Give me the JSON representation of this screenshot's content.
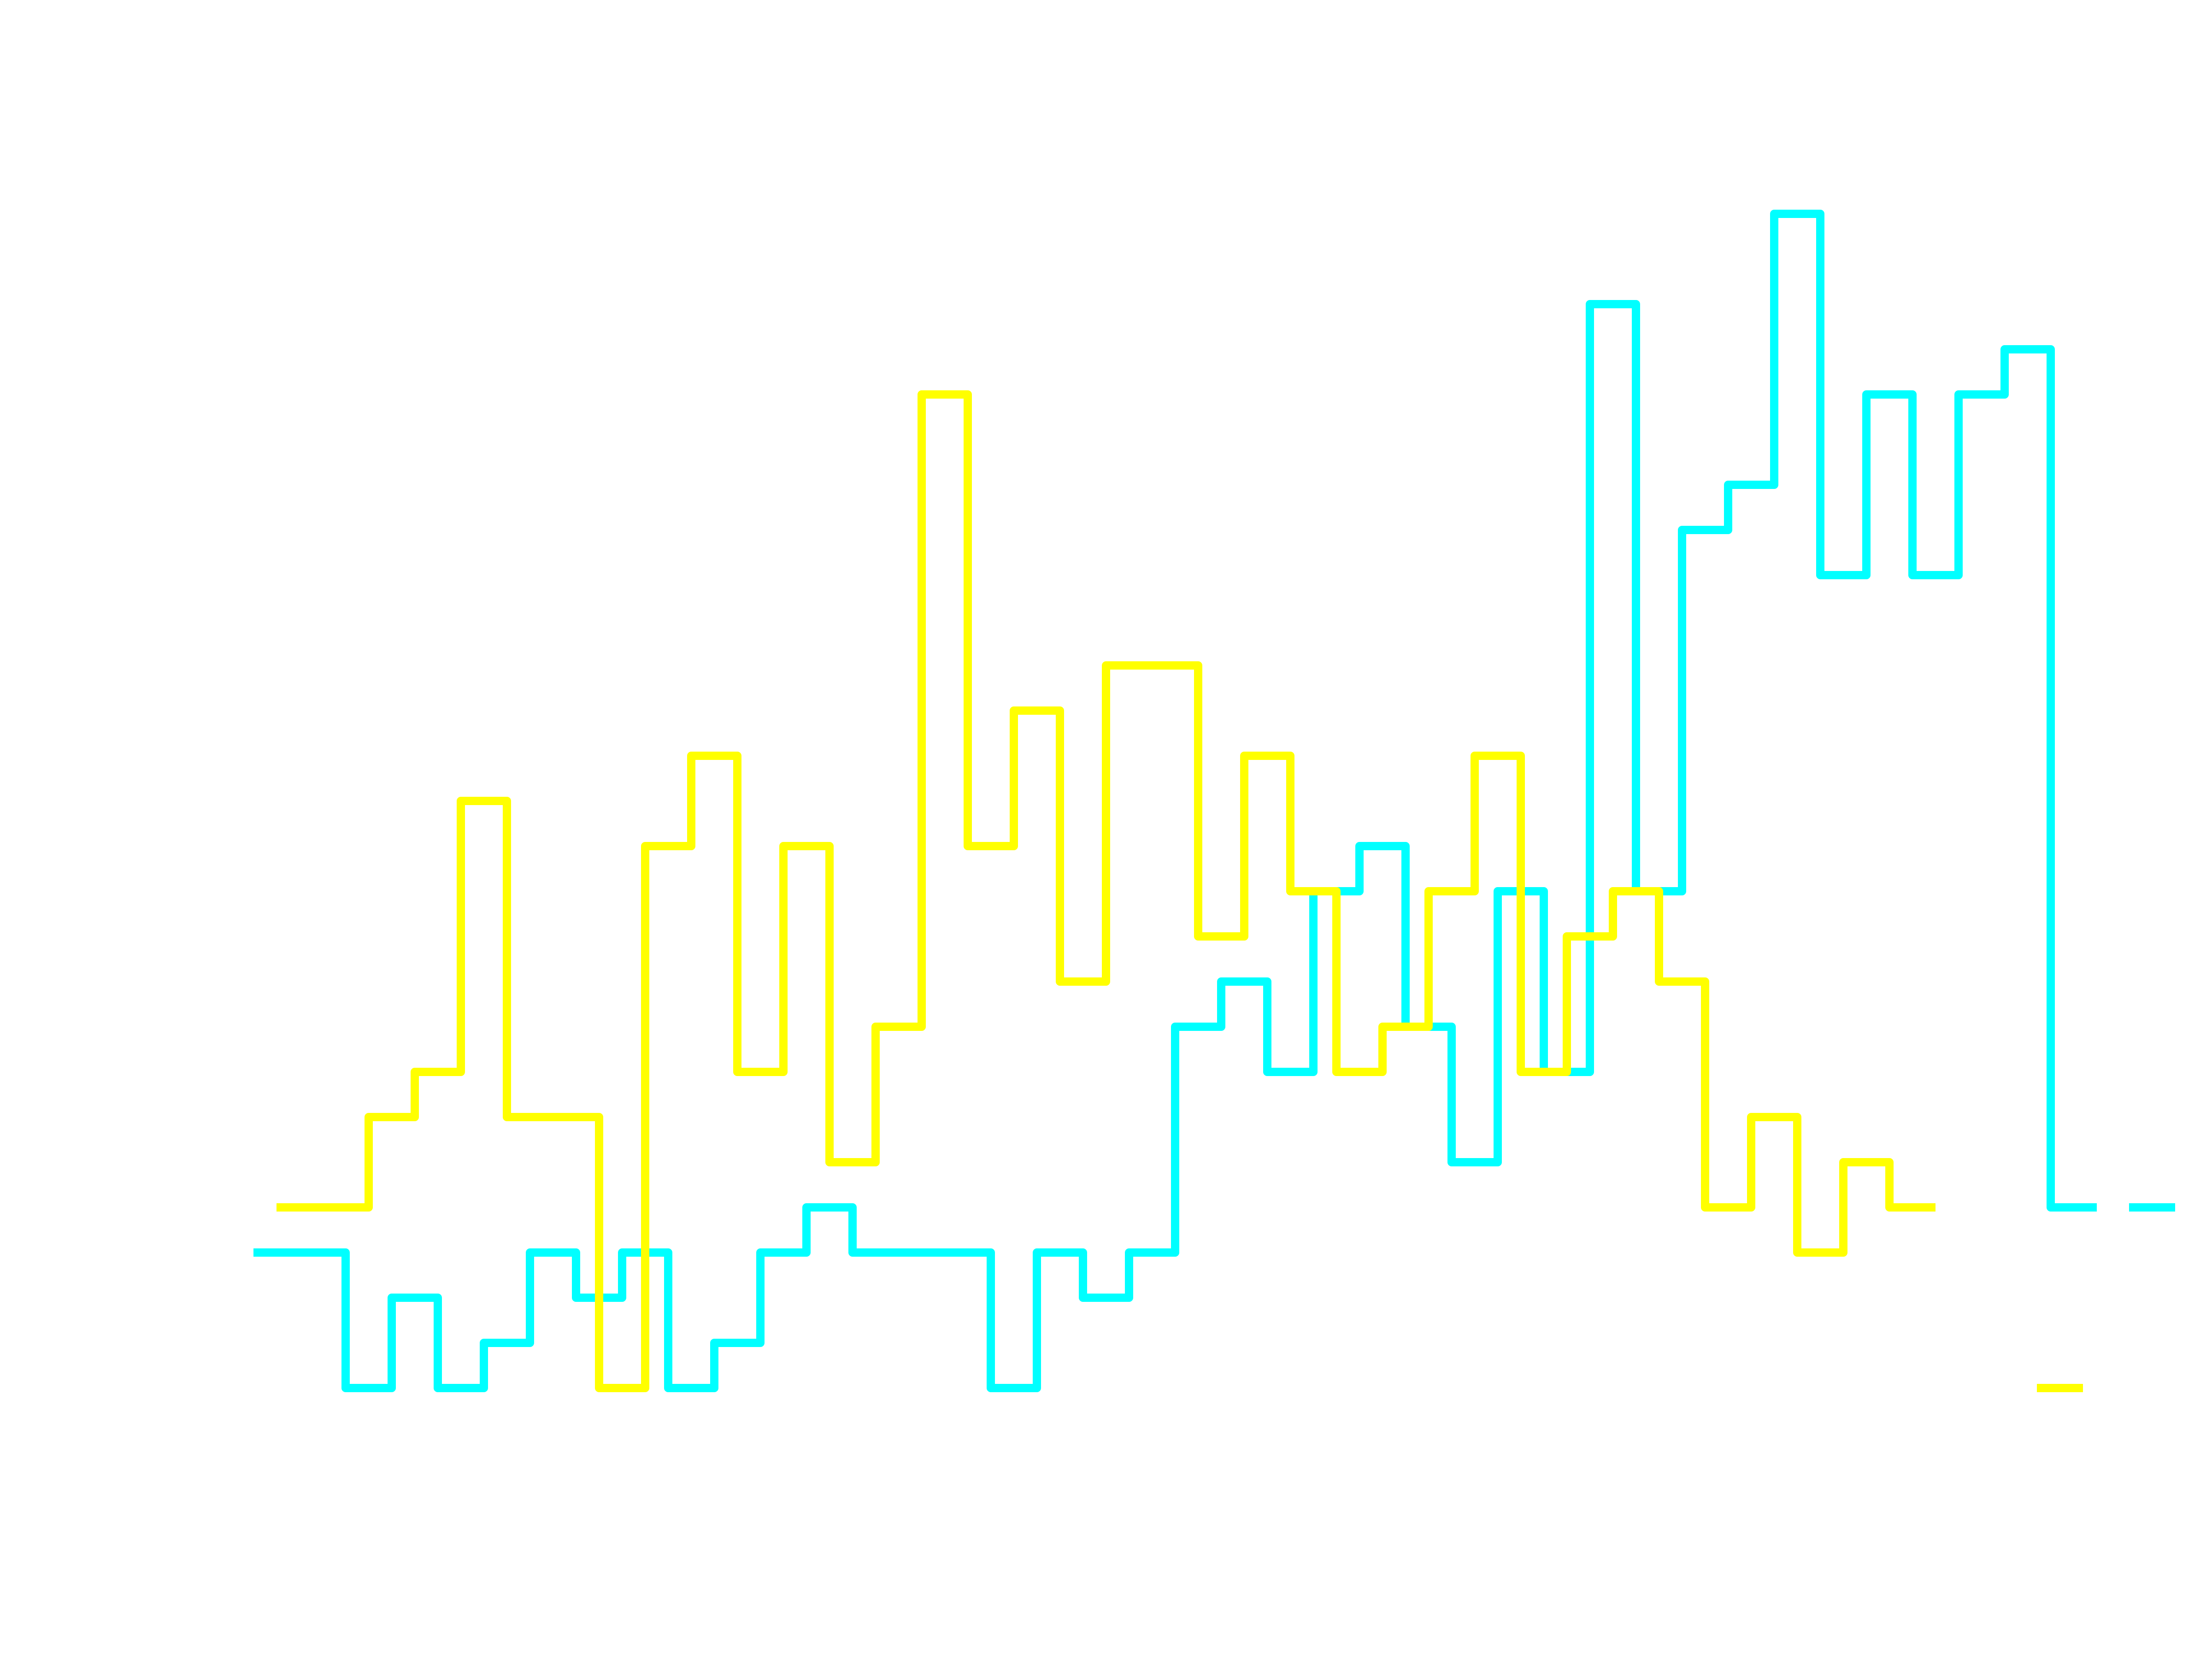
{
  "chart_data": {
    "type": "line",
    "step": "histogram-style",
    "title": "",
    "xlabel": "",
    "ylabel": "",
    "axes_visible": false,
    "grid": false,
    "ylim": [
      0,
      27
    ],
    "series": [
      {
        "color": "#00ffff",
        "segments": [
          {
            "x0": 550,
            "y": [
              4,
              4,
              1,
              3,
              1,
              2,
              4,
              3,
              4,
              1,
              2,
              4,
              5,
              4,
              4,
              4,
              1,
              4,
              3,
              4,
              9,
              10,
              8,
              12,
              13,
              9,
              6,
              12,
              8,
              25,
              12,
              20,
              21,
              27,
              19,
              23,
              19,
              23,
              24,
              5
            ]
          },
          {
            "x0": 4620,
            "y": [
              5
            ]
          }
        ]
      },
      {
        "color": "#ffff00",
        "segments": [
          {
            "x0": 600,
            "y": [
              5,
              5,
              7,
              8,
              14,
              7,
              7,
              1,
              13,
              15,
              8,
              13,
              6,
              9,
              23,
              13,
              16,
              10,
              17,
              17,
              11,
              15,
              12,
              8,
              9,
              12,
              15,
              8,
              11,
              12,
              10,
              5,
              7,
              4,
              6,
              5
            ]
          },
          {
            "x0": 4420,
            "y": [
              1
            ]
          }
        ]
      }
    ]
  }
}
